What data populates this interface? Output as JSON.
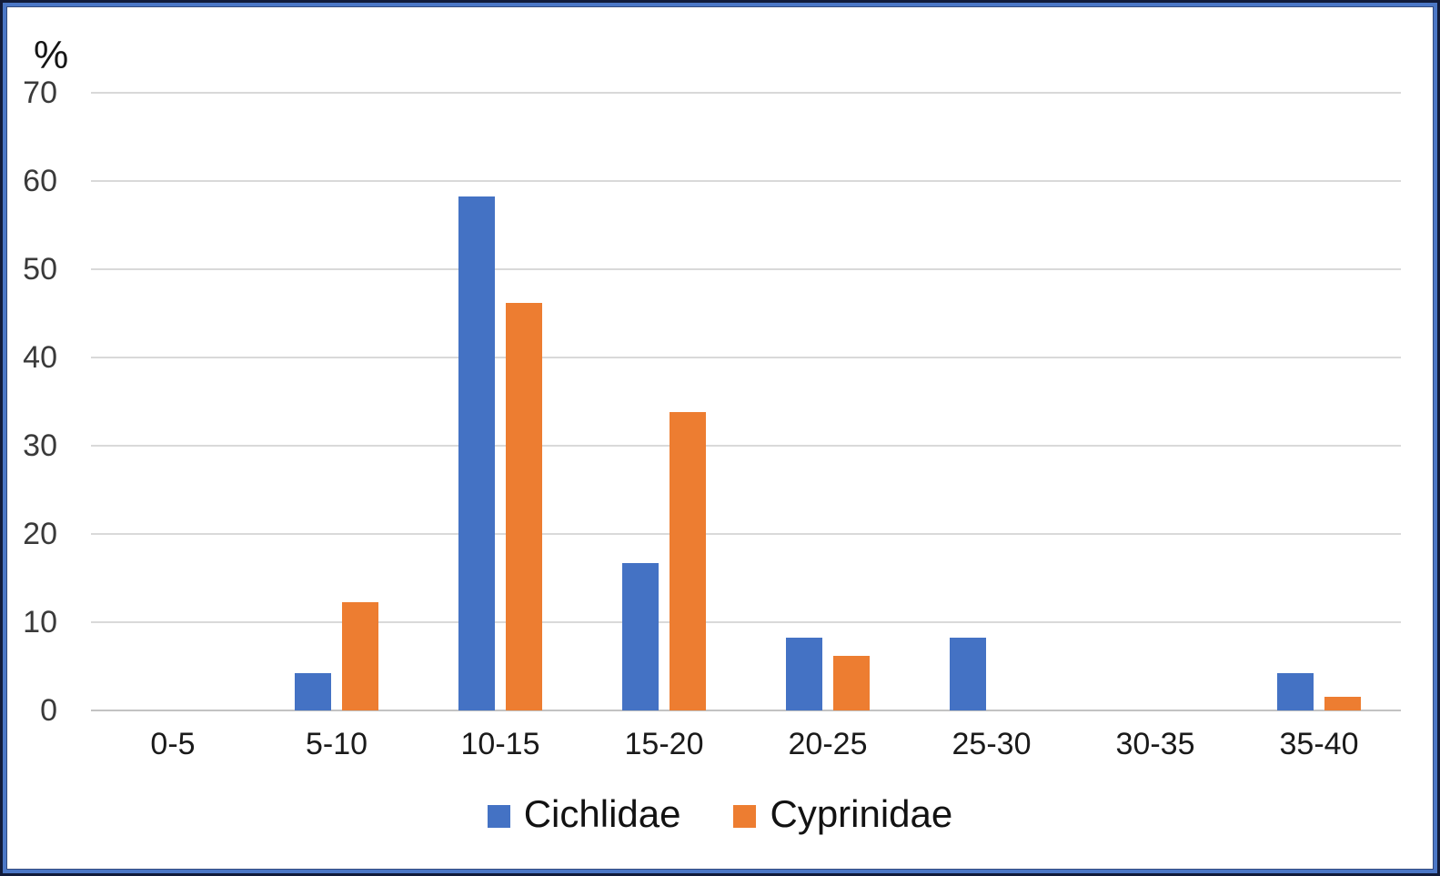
{
  "chart_data": {
    "type": "bar",
    "title": "",
    "ylabel": "%",
    "xlabel": "",
    "categories": [
      "0-5",
      "5-10",
      "10-15",
      "15-20",
      "20-25",
      "25-30",
      "30-35",
      "35-40"
    ],
    "series": [
      {
        "name": "Cichlidae",
        "color": "#4472C4",
        "values": [
          0,
          4.2,
          58.3,
          16.7,
          8.3,
          8.3,
          0,
          4.2
        ]
      },
      {
        "name": "Cyprinidae",
        "color": "#ED7D31",
        "values": [
          0,
          12.3,
          46.2,
          33.8,
          6.2,
          0,
          0,
          1.5
        ]
      }
    ],
    "ylim": [
      0,
      70
    ],
    "yticks": [
      0,
      10,
      20,
      30,
      40,
      50,
      60,
      70
    ],
    "grid": "horizontal",
    "legend_position": "bottom"
  },
  "colors": {
    "grid": "#d9d9d9",
    "axis_line": "#c3c3c3",
    "tick_text": "#3a3a3a",
    "label_text": "#1a1a1a",
    "frame_outer": "#111b3a",
    "frame_inner": "#4b77c6",
    "background": "#ffffff"
  }
}
